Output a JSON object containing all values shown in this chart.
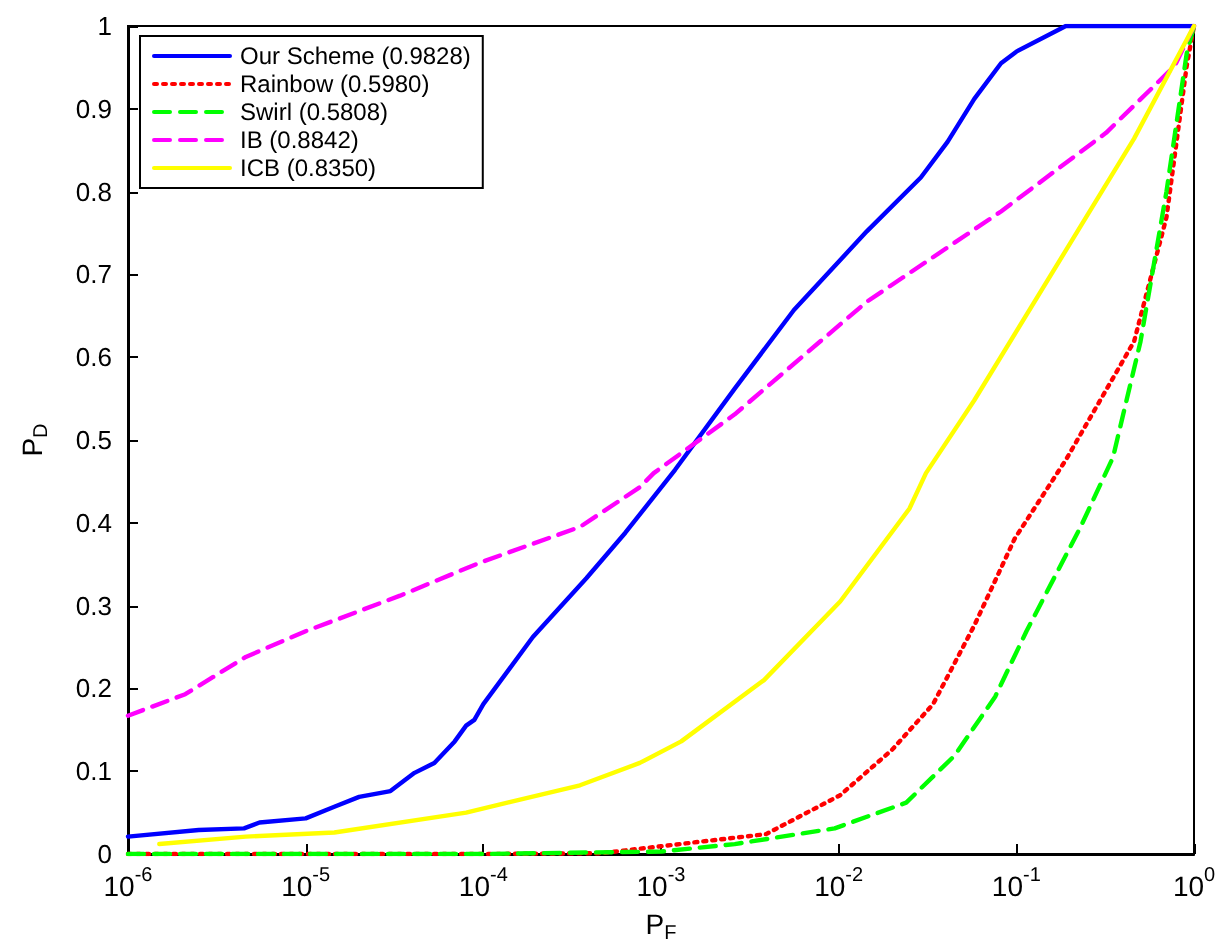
{
  "chart_data": {
    "type": "line",
    "xlabel": "P$_{F}$",
    "ylabel": "P$_{D}$",
    "log": "x",
    "grid": false,
    "legend": "top left",
    "xlim": [
      1e-06,
      1
    ],
    "xticks": [
      {
        "value": 1e-06,
        "label": "10$^{-6}$"
      },
      {
        "value": 1e-05,
        "label": "10$^{-5}$"
      },
      {
        "value": 0.0001,
        "label": "10$^{-4}$"
      },
      {
        "value": 0.001,
        "label": "10$^{-3}$"
      },
      {
        "value": 0.01,
        "label": "10$^{-2}$"
      },
      {
        "value": 0.1,
        "label": "10$^{-1}$"
      },
      {
        "value": 1,
        "label": "10$^{0}$"
      }
    ],
    "ylim": [
      0,
      1
    ],
    "yticks": [
      0,
      0.1,
      0.2,
      0.3,
      0.4,
      0.5,
      0.6,
      0.7,
      0.8,
      0.9,
      1
    ],
    "series": [
      {
        "name": "Our Scheme (0.9828)",
        "color": "#0000ff",
        "line_style": "solid",
        "x": [
          1e-06,
          2.5e-06,
          4.5e-06,
          5.5e-06,
          1e-05,
          1.45e-05,
          2e-05,
          3e-05,
          4.1e-05,
          5.3e-05,
          6.9e-05,
          8e-05,
          8.9e-05,
          0.0001,
          0.00019,
          0.00038,
          0.00063,
          0.0012,
          0.0026,
          0.0056,
          0.0144,
          0.029,
          0.041,
          0.058,
          0.082,
          0.1,
          0.19,
          1
        ],
        "values": [
          0.021,
          0.029,
          0.031,
          0.038,
          0.043,
          0.057,
          0.069,
          0.076,
          0.098,
          0.11,
          0.136,
          0.155,
          0.162,
          0.181,
          0.262,
          0.333,
          0.388,
          0.464,
          0.562,
          0.657,
          0.752,
          0.817,
          0.86,
          0.912,
          0.955,
          0.969,
          1,
          1
        ]
      },
      {
        "name": "Rainbow (0.5980)",
        "color": "#ff0000",
        "line_style": "dotted",
        "x": [
          1e-06,
          0.0001,
          0.00046,
          0.0039,
          0.0102,
          0.02,
          0.034,
          0.058,
          0.098,
          0.19,
          0.46,
          0.7,
          0.91,
          1
        ],
        "values": [
          0,
          0,
          0.001,
          0.024,
          0.071,
          0.126,
          0.181,
          0.276,
          0.381,
          0.476,
          0.619,
          0.769,
          0.952,
          1
        ]
      },
      {
        "name": "Swirl (0.5808)",
        "color": "#00ff00",
        "line_style": "dashed",
        "x": [
          1e-06,
          0.0001,
          0.001,
          0.0026,
          0.0095,
          0.024,
          0.045,
          0.076,
          0.114,
          0.23,
          0.35,
          0.5,
          0.7,
          0.91,
          1
        ],
        "values": [
          0,
          0,
          0.003,
          0.012,
          0.031,
          0.062,
          0.119,
          0.19,
          0.269,
          0.395,
          0.479,
          0.619,
          0.8,
          0.967,
          1
        ]
      },
      {
        "name": "IB (0.8842)",
        "color": "#ff00ff",
        "line_style": "dashed",
        "x": [
          1e-06,
          2.1e-06,
          4.6e-06,
          1e-05,
          3.4e-05,
          9.6e-05,
          0.00035,
          0.00076,
          0.00091,
          0.0026,
          0.0144,
          0.082,
          0.32,
          0.78,
          1
        ],
        "values": [
          0.167,
          0.193,
          0.238,
          0.269,
          0.312,
          0.352,
          0.395,
          0.443,
          0.46,
          0.531,
          0.667,
          0.776,
          0.871,
          0.952,
          1
        ]
      },
      {
        "name": "ICB (0.8350)",
        "color": "#ffff00",
        "line_style": "solid",
        "x": [
          1.5e-06,
          4.6e-06,
          1.45e-05,
          8e-05,
          0.00035,
          0.00076,
          0.0013,
          0.0038,
          0.0102,
          0.025,
          0.031,
          0.058,
          0.19,
          0.46,
          1
        ],
        "values": [
          0.012,
          0.021,
          0.026,
          0.05,
          0.083,
          0.11,
          0.136,
          0.21,
          0.305,
          0.417,
          0.46,
          0.548,
          0.729,
          0.864,
          1
        ]
      }
    ]
  }
}
